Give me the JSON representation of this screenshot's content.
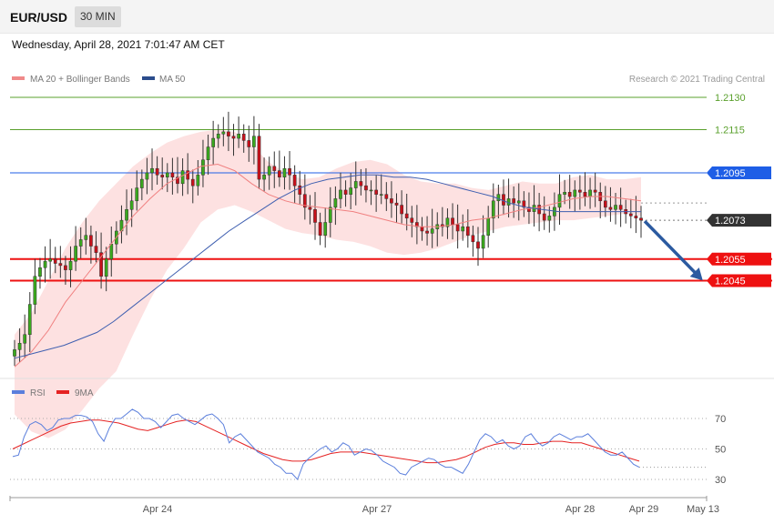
{
  "header": {
    "symbol": "EUR/USD",
    "timeframe": "30 MIN",
    "datetime": "Wednesday, April 28, 2021 7:01:47 AM CET"
  },
  "legend": {
    "ma20_label": "MA 20 + Bollinger Bands",
    "ma50_label": "MA 50",
    "copyright": "Research © 2021 Trading Central"
  },
  "levels": [
    {
      "value": "1.2130",
      "color": "#5aa02c"
    },
    {
      "value": "1.2115",
      "color": "#5aa02c"
    },
    {
      "value": "1.2095",
      "color": "#1e5ee6"
    },
    {
      "value": "1.2073",
      "color": "#333333"
    },
    {
      "value": "1.2055",
      "color": "#ee1111"
    },
    {
      "value": "1.2045",
      "color": "#ee1111"
    }
  ],
  "rsi_legend": {
    "rsi_label": "RSI",
    "ma_label": "9MA"
  },
  "rsi_levels": [
    "70",
    "50",
    "30"
  ],
  "x_labels": [
    "Apr 24",
    "Apr 27",
    "Apr 28",
    "Apr 29",
    "May 13"
  ],
  "chart_data": {
    "type": "candlestick",
    "price_closes": [
      1.2013,
      1.2016,
      1.202,
      1.2034,
      1.2047,
      1.2051,
      1.2054,
      1.2055,
      1.2053,
      1.2052,
      1.205,
      1.2054,
      1.2061,
      1.2064,
      1.2066,
      1.2061,
      1.2058,
      1.2047,
      1.2055,
      1.2062,
      1.2068,
      1.2073,
      1.2078,
      1.2082,
      1.2088,
      1.2092,
      1.2095,
      1.2097,
      1.2094,
      1.2093,
      1.2095,
      1.2093,
      1.209,
      1.2096,
      1.2092,
      1.2089,
      1.2094,
      1.2101,
      1.2107,
      1.2111,
      1.2113,
      1.2114,
      1.2112,
      1.2111,
      1.2113,
      1.211,
      1.2107,
      1.2112,
      1.2092,
      1.2094,
      1.2098,
      1.2096,
      1.2093,
      1.2097,
      1.2094,
      1.2089,
      1.2085,
      1.2079,
      1.2078,
      1.2072,
      1.2066,
      1.2072,
      1.2079,
      1.2083,
      1.2087,
      1.2085,
      1.2088,
      1.2091,
      1.2089,
      1.2087,
      1.2087,
      1.2085,
      1.2085,
      1.2083,
      1.2081,
      1.208,
      1.2076,
      1.2074,
      1.2072,
      1.207,
      1.2068,
      1.2067,
      1.2069,
      1.2071,
      1.207,
      1.2074,
      1.2071,
      1.2068,
      1.207,
      1.2066,
      1.2063,
      1.206,
      1.2066,
      1.2074,
      1.2082,
      1.2085,
      1.208,
      1.2083,
      1.2081,
      1.2082,
      1.2079,
      1.2077,
      1.208,
      1.2076,
      1.2073,
      1.2075,
      1.2079,
      1.2085,
      1.2086,
      1.2084,
      1.2087,
      1.2086,
      1.2084,
      1.2087,
      1.2086,
      1.2082,
      1.2079,
      1.2078,
      1.208,
      1.2078,
      1.2076,
      1.2075,
      1.2074,
      1.2073
    ],
    "bb_upper": [
      1.202,
      1.203,
      1.2045,
      1.206,
      1.2072,
      1.2082,
      1.209,
      1.2098,
      1.2104,
      1.2109,
      1.2112,
      1.2114,
      1.2115,
      1.2114,
      1.2108,
      1.21,
      1.2095,
      1.2092,
      1.2093,
      1.2097,
      1.21,
      1.2101,
      1.2099,
      1.2094,
      1.2091,
      1.209,
      1.209,
      1.2088,
      1.2087,
      1.2089,
      1.2091,
      1.209,
      1.209,
      1.2093,
      1.2094,
      1.2092,
      1.2092,
      1.2093
    ],
    "bb_lower": [
      1.1983,
      1.1975,
      1.1972,
      1.1976,
      1.1985,
      1.1995,
      1.2003,
      1.202,
      1.2036,
      1.205,
      1.206,
      1.2072,
      1.2078,
      1.208,
      1.2077,
      1.2073,
      1.2069,
      1.2067,
      1.2066,
      1.2064,
      1.2063,
      1.2061,
      1.2058,
      1.2057,
      1.2058,
      1.206,
      1.2063,
      1.2066,
      1.2068,
      1.207,
      1.2071,
      1.2072,
      1.2073,
      1.2073,
      1.2074,
      1.2075,
      1.2076,
      1.2075
    ],
    "ma20": [
      1.2005,
      1.2012,
      1.2022,
      1.2035,
      1.2045,
      1.2055,
      1.2065,
      1.2075,
      1.2083,
      1.209,
      1.2094,
      1.2098,
      1.2099,
      1.2096,
      1.209,
      1.2085,
      1.2082,
      1.208,
      1.2079,
      1.2078,
      1.2077,
      1.2075,
      1.2073,
      1.2071,
      1.207,
      1.207,
      1.2071,
      1.2073,
      1.2074,
      1.2076,
      1.2078,
      1.2079,
      1.2081,
      1.2083,
      1.2084,
      1.2084,
      1.2083,
      1.2082
    ],
    "ma50": [
      1.2009,
      1.2011,
      1.2013,
      1.2015,
      1.2018,
      1.2021,
      1.2026,
      1.2032,
      1.2038,
      1.2044,
      1.205,
      1.2056,
      1.2062,
      1.2068,
      1.2073,
      1.2078,
      1.2083,
      1.2087,
      1.209,
      1.2092,
      1.2093,
      1.2094,
      1.2094,
      1.2093,
      1.2093,
      1.2092,
      1.209,
      1.2088,
      1.2086,
      1.2084,
      1.2081,
      1.2079,
      1.2078,
      1.2077,
      1.2077,
      1.2077,
      1.2077,
      1.2077,
      1.2077
    ],
    "forecast_target": 1.2045,
    "rsi": [
      45,
      46,
      58,
      66,
      68,
      66,
      62,
      64,
      69,
      70,
      70,
      72,
      72,
      71,
      68,
      60,
      55,
      64,
      70,
      70,
      73,
      76,
      74,
      70,
      70,
      68,
      64,
      68,
      72,
      73,
      70,
      68,
      66,
      69,
      72,
      73,
      70,
      66,
      54,
      58,
      60,
      56,
      52,
      48,
      46,
      44,
      40,
      38,
      34,
      34,
      30,
      40,
      44,
      47,
      50,
      52,
      48,
      50,
      54,
      52,
      46,
      48,
      50,
      49,
      46,
      42,
      40,
      38,
      34,
      33,
      38,
      40,
      42,
      44,
      43,
      40,
      38,
      38,
      36,
      34,
      40,
      48,
      56,
      60,
      58,
      54,
      56,
      52,
      50,
      52,
      58,
      60,
      55,
      52,
      54,
      58,
      60,
      58,
      56,
      58,
      58,
      60,
      56,
      52,
      48,
      46,
      46,
      48,
      44,
      40,
      38
    ],
    "rsi_ma": [
      50,
      53,
      56,
      59,
      62,
      65,
      67,
      68,
      69,
      69,
      68,
      67,
      65,
      63,
      62,
      64,
      66,
      68,
      69,
      68,
      65,
      62,
      59,
      56,
      53,
      50,
      47,
      45,
      43,
      42,
      42,
      43,
      45,
      47,
      48,
      48,
      48,
      47,
      46,
      45,
      44,
      43,
      42,
      41,
      41,
      42,
      43,
      45,
      48,
      51,
      53,
      54,
      54,
      53,
      53,
      54,
      55,
      55,
      54,
      54,
      52,
      50,
      48,
      46,
      44,
      42
    ]
  }
}
